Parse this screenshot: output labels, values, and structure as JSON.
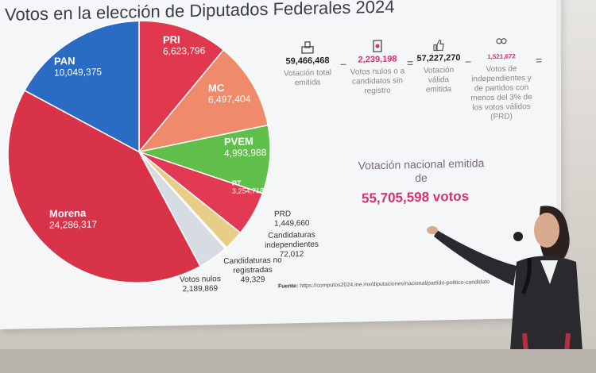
{
  "title": "Votos en la elección de Diputados Federales 2024",
  "pie": [
    {
      "party": "Morena",
      "votes": "24,286,317",
      "value": 24286317,
      "color": "#d9334a"
    },
    {
      "party": "PAN",
      "votes": "10,049,375",
      "value": 10049375,
      "color": "#2a6cc4"
    },
    {
      "party": "PRI",
      "votes": "6,623,796",
      "value": 6623796,
      "color": "#e0384e"
    },
    {
      "party": "MC",
      "votes": "6,497,404",
      "value": 6497404,
      "color": "#ef8a6a"
    },
    {
      "party": "PVEM",
      "votes": "4,993,988",
      "value": 4993988,
      "color": "#5fbf4a"
    },
    {
      "party": "PT",
      "votes": "3,254,718",
      "value": 3254718,
      "color": "#e23a55"
    },
    {
      "party": "PRD",
      "votes": "1,449,660",
      "value": 1449660,
      "color": "#e7cd86"
    },
    {
      "party": "Candidaturas independientes",
      "votes": "72,012",
      "value": 72012,
      "color": "#9aa4b0"
    },
    {
      "party": "Candidaturas no registradas",
      "votes": "49,329",
      "value": 49329,
      "color": "#b0b8c2"
    },
    {
      "party": "Votos nulos",
      "votes": "2,189,869",
      "value": 2189869,
      "color": "#d7dbe2"
    }
  ],
  "equation": {
    "total": {
      "value": "59,466,468",
      "label": "Votación total emitida"
    },
    "nulos": {
      "value": "2,239,198",
      "label": "Votos nulos o a candidatos sin registro"
    },
    "valida": {
      "value": "57,227,270",
      "label": "Votación válida emitida"
    },
    "prd": {
      "value": "1,521,672",
      "label": "Votos de independientes y de partidos con menos del 3% de los votos válidos (PRD)"
    },
    "minus": "−",
    "equals": "="
  },
  "national": {
    "label": "Votación nacional emitida de",
    "value": "55,705,598 votos"
  },
  "source": {
    "label": "Fuente:",
    "url": "https://computos2024.ine.mx/diputaciones/nacional/partido-politico-candidato"
  }
}
